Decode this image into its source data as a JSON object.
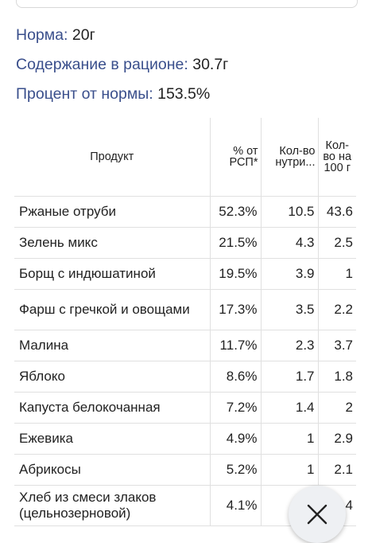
{
  "summary": {
    "norm_label": "Норма:",
    "norm_value": "20г",
    "content_label": "Содержание в рационе:",
    "content_value": "30.7г",
    "percent_label": "Процент от нормы:",
    "percent_value": "153.5%"
  },
  "table": {
    "headers": [
      "Продукт",
      "% от РСП*",
      "Кол-во нутри...",
      "Кол-во на 100 г"
    ],
    "rows": [
      {
        "name": "Ржаные отруби",
        "pct": "52.3%",
        "amount": "10.5",
        "per100": "43.6"
      },
      {
        "name": "Зелень микс",
        "pct": "21.5%",
        "amount": "4.3",
        "per100": "2.5"
      },
      {
        "name": "Борщ с индюшатиной",
        "pct": "19.5%",
        "amount": "3.9",
        "per100": "1"
      },
      {
        "name": "Фарш с гречкой и овощами",
        "pct": "17.3%",
        "amount": "3.5",
        "per100": "2.2"
      },
      {
        "name": "Малина",
        "pct": "11.7%",
        "amount": "2.3",
        "per100": "3.7"
      },
      {
        "name": "Яблоко",
        "pct": "8.6%",
        "amount": "1.7",
        "per100": "1.8"
      },
      {
        "name": "Капуста белокочанная",
        "pct": "7.2%",
        "amount": "1.4",
        "per100": "2"
      },
      {
        "name": "Ежевика",
        "pct": "4.9%",
        "amount": "1",
        "per100": "2.9"
      },
      {
        "name": "Абрикосы",
        "pct": "5.2%",
        "amount": "1",
        "per100": "2.1"
      },
      {
        "name": "Хлеб из смеси злаков (цельнозерновой)",
        "pct": "4.1%",
        "amount": "",
        "per100": "4"
      }
    ]
  },
  "icons": {
    "close": "close-icon"
  },
  "colors": {
    "label": "#3a4f8c",
    "text": "#222222",
    "border": "#e0e0e0"
  }
}
